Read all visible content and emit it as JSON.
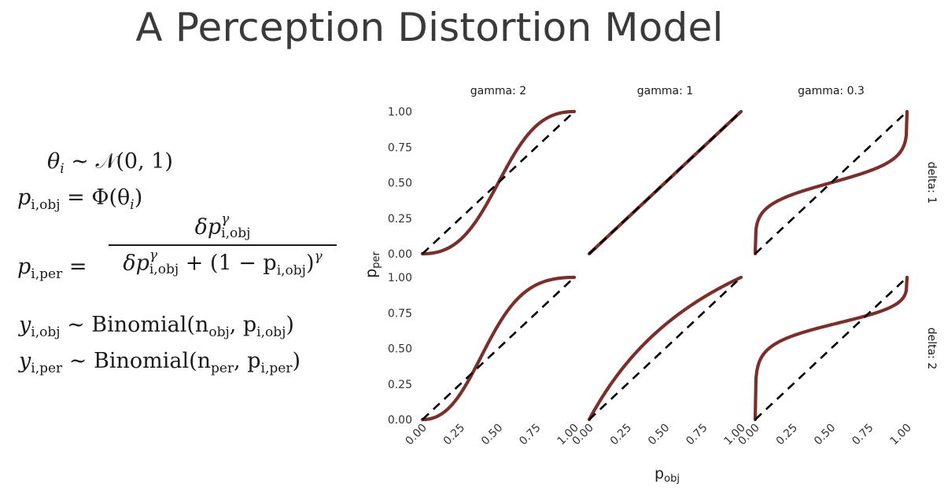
{
  "title": "A Perception Distortion Model",
  "equations": {
    "theta": {
      "lhs": "θ",
      "lhs_sub": "i",
      "rhs": "∼ 𝒩(0, 1)"
    },
    "p_obj": {
      "lhs": "p",
      "lhs_sub": "i,obj",
      "rhs": "= Φ(θ",
      "rhs_sub": "i",
      "rhs_tail": ")"
    },
    "p_per": {
      "lhs": "p",
      "lhs_sub": "i,per",
      "eq": "=",
      "num_a": "δp",
      "num_sup": "γ",
      "num_sub": "i,obj",
      "den_a": "δp",
      "den_sup": "γ",
      "den_sub": "i,obj",
      "den_b": "+ (1 − p",
      "den_b_sub": "i,obj",
      "den_c": ")",
      "den_c_sup": "γ"
    },
    "y_obj": {
      "lhs": "y",
      "lhs_sub": "i,obj",
      "rhs": "∼ Binomial(n",
      "rhs_sub1": "obj",
      "rhs_mid": ", p",
      "rhs_sub2": "i,obj",
      "rhs_tail": ")"
    },
    "y_per": {
      "lhs": "y",
      "lhs_sub": "i,per",
      "rhs": "∼ Binomial(n",
      "rhs_sub1": "per",
      "rhs_mid": ", p",
      "rhs_sub2": "i,per",
      "rhs_tail": ")"
    }
  },
  "chart_data": {
    "type": "line",
    "facet_cols": [
      "gamma: 2",
      "gamma: 1",
      "gamma: 0.3"
    ],
    "facet_rows": [
      "delta: 1",
      "delta: 2"
    ],
    "gamma_values": [
      2,
      1,
      0.3
    ],
    "delta_values": [
      1,
      2
    ],
    "xlabel": "p",
    "xlabel_sub": "obj",
    "ylabel": "p",
    "ylabel_sub": "per",
    "xlim": [
      0,
      1
    ],
    "ylim": [
      0,
      1
    ],
    "x_ticks": [
      "0.00",
      "0.25",
      "0.50",
      "0.75",
      "1.00"
    ],
    "y_ticks": [
      "0.00",
      "0.25",
      "0.50",
      "0.75",
      "1.00"
    ],
    "series": [
      {
        "style": "solid",
        "color": "#7b2f2b",
        "formula": "δp^γ / (δp^γ + (1 − p)^γ)"
      },
      {
        "style": "dashed",
        "color": "#000000",
        "formula": "p"
      }
    ],
    "panels": [
      {
        "col": "gamma: 2",
        "row": "delta: 1",
        "gamma": 2,
        "delta": 1,
        "x": [
          0,
          0.1,
          0.2,
          0.3,
          0.4,
          0.5,
          0.6,
          0.7,
          0.8,
          0.9,
          1
        ],
        "y": [
          0,
          0.012,
          0.059,
          0.155,
          0.308,
          0.5,
          0.692,
          0.845,
          0.941,
          0.988,
          1
        ]
      },
      {
        "col": "gamma: 1",
        "row": "delta: 1",
        "gamma": 1,
        "delta": 1,
        "x": [
          0,
          0.1,
          0.2,
          0.3,
          0.4,
          0.5,
          0.6,
          0.7,
          0.8,
          0.9,
          1
        ],
        "y": [
          0,
          0.1,
          0.2,
          0.3,
          0.4,
          0.5,
          0.6,
          0.7,
          0.8,
          0.9,
          1
        ]
      },
      {
        "col": "gamma: 0.3",
        "row": "delta: 1",
        "gamma": 0.3,
        "delta": 1,
        "x": [
          0,
          0.1,
          0.2,
          0.3,
          0.4,
          0.5,
          0.6,
          0.7,
          0.8,
          0.9,
          1
        ],
        "y": [
          0,
          0.339,
          0.397,
          0.437,
          0.47,
          0.5,
          0.53,
          0.563,
          0.603,
          0.661,
          1
        ]
      },
      {
        "col": "gamma: 2",
        "row": "delta: 2",
        "gamma": 2,
        "delta": 2,
        "x": [
          0,
          0.1,
          0.2,
          0.3,
          0.4,
          0.5,
          0.6,
          0.7,
          0.8,
          0.9,
          1
        ],
        "y": [
          0,
          0.024,
          0.111,
          0.269,
          0.471,
          0.667,
          0.818,
          0.916,
          0.97,
          0.994,
          1
        ]
      },
      {
        "col": "gamma: 1",
        "row": "delta: 2",
        "gamma": 1,
        "delta": 2,
        "x": [
          0,
          0.1,
          0.2,
          0.3,
          0.4,
          0.5,
          0.6,
          0.7,
          0.8,
          0.9,
          1
        ],
        "y": [
          0,
          0.182,
          0.333,
          0.462,
          0.571,
          0.667,
          0.75,
          0.824,
          0.889,
          0.947,
          1
        ]
      },
      {
        "col": "gamma: 0.3",
        "row": "delta: 2",
        "gamma": 0.3,
        "delta": 2,
        "x": [
          0,
          0.1,
          0.2,
          0.3,
          0.4,
          0.5,
          0.6,
          0.7,
          0.8,
          0.9,
          1
        ],
        "y": [
          0,
          0.507,
          0.569,
          0.609,
          0.64,
          0.667,
          0.692,
          0.721,
          0.752,
          0.796,
          1
        ]
      }
    ]
  }
}
